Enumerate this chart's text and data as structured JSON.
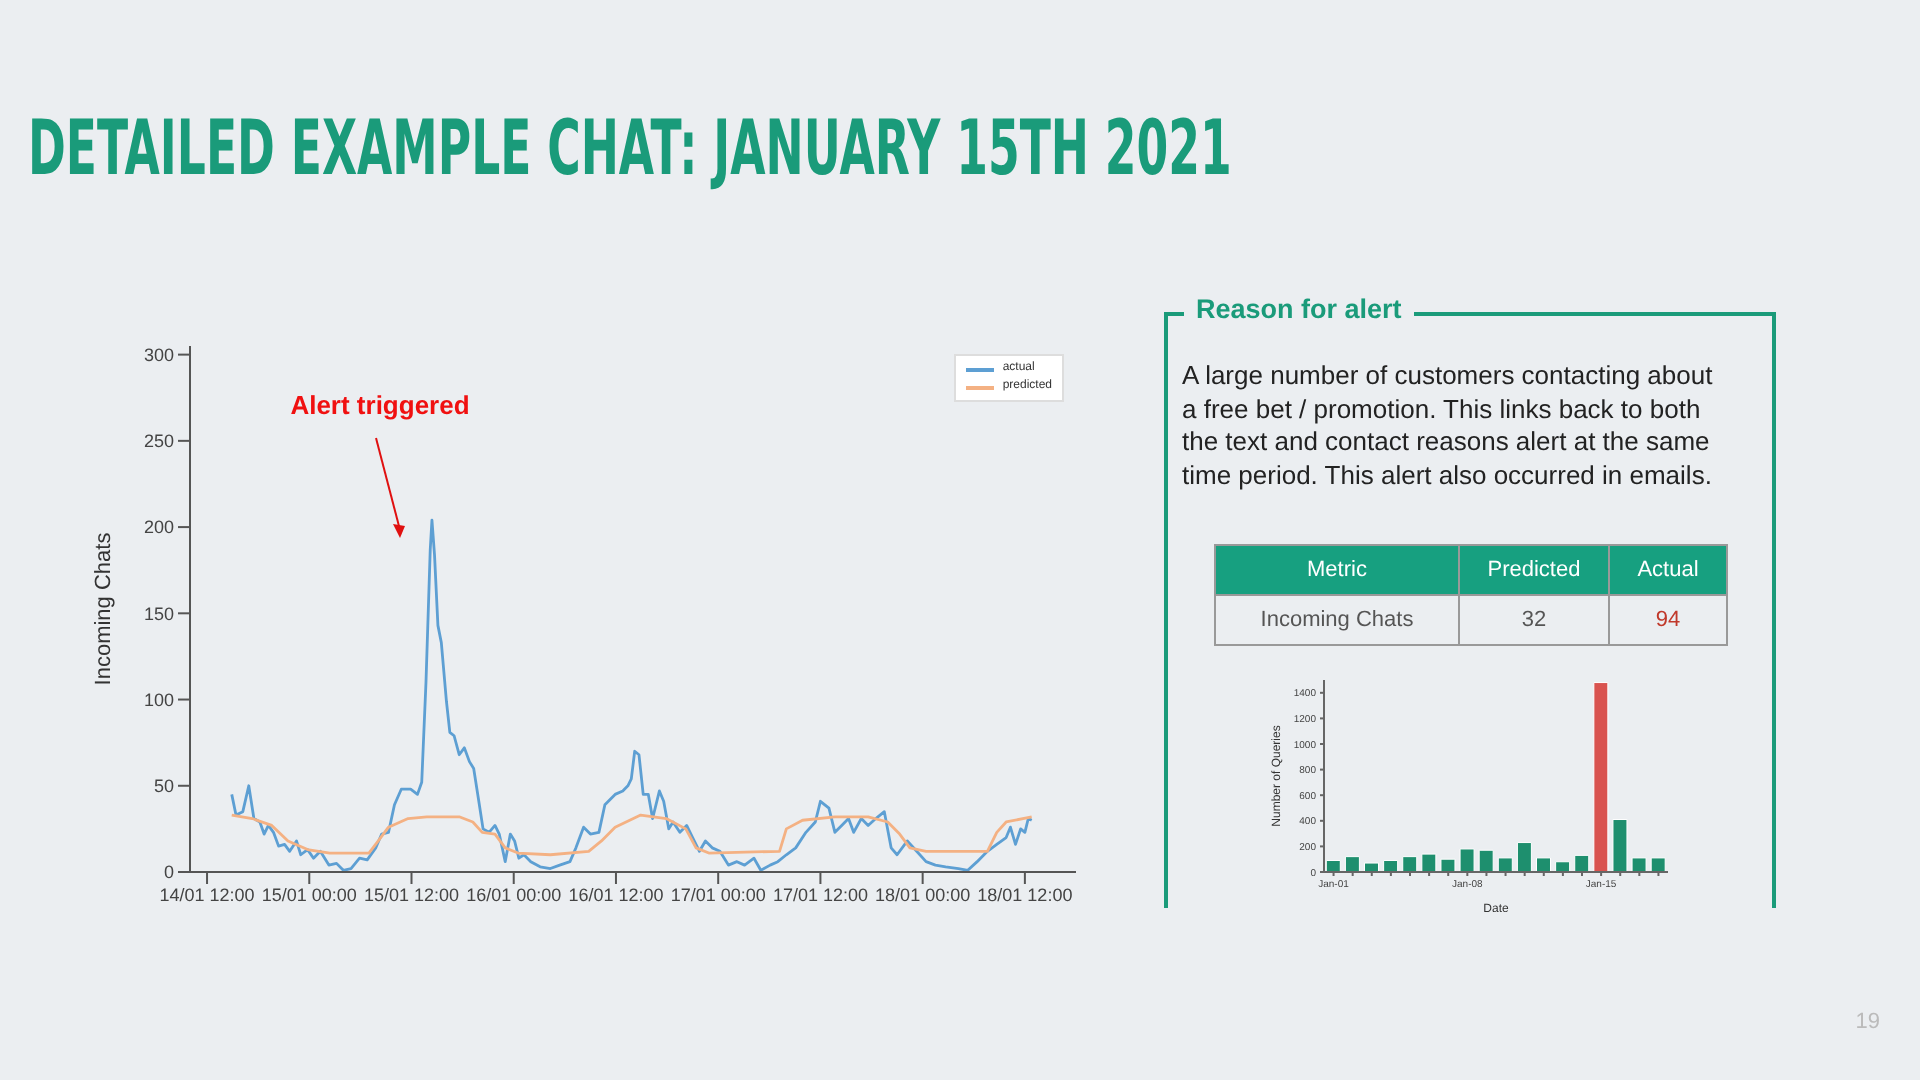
{
  "chart_data": [
    {
      "type": "line",
      "title": "DETAILED EXAMPLE CHAT: JANUARY 15TH 2021",
      "ylabel": "Incoming Chats",
      "xlim": [
        "2021-01-14T10:00",
        "2021-01-18T18:00"
      ],
      "ylim": [
        0,
        305
      ],
      "yticks": [
        0,
        50,
        100,
        150,
        200,
        250,
        300
      ],
      "xticks": [
        {
          "value": "2021-01-14T12:00",
          "label": "14/01 12:00"
        },
        {
          "value": "2021-01-15T00:00",
          "label": "15/01 00:00"
        },
        {
          "value": "2021-01-15T12:00",
          "label": "15/01 12:00"
        },
        {
          "value": "2021-01-16T00:00",
          "label": "16/01 00:00"
        },
        {
          "value": "2021-01-16T12:00",
          "label": "16/01 12:00"
        },
        {
          "value": "2021-01-17T00:00",
          "label": "17/01 00:00"
        },
        {
          "value": "2021-01-17T12:00",
          "label": "17/01 12:00"
        },
        {
          "value": "2021-01-18T00:00",
          "label": "18/01 00:00"
        },
        {
          "value": "2021-01-18T12:00",
          "label": "18/01 12:00"
        }
      ],
      "legend": "top right",
      "marker": "none",
      "series": [
        {
          "name": "actual",
          "color": "#5d9fd3",
          "x": [
            "2021-01-14T14:54",
            "2021-01-14T15:24",
            "2021-01-14T16:12",
            "2021-01-14T16:54",
            "2021-01-14T17:30",
            "2021-01-14T18:12",
            "2021-01-14T18:42",
            "2021-01-14T19:12",
            "2021-01-14T19:48",
            "2021-01-14T20:24",
            "2021-01-14T21:06",
            "2021-01-14T21:42",
            "2021-01-14T22:30",
            "2021-01-14T23:00",
            "2021-01-14T23:48",
            "2021-01-15T00:30",
            "2021-01-15T01:18",
            "2021-01-15T02:18",
            "2021-01-15T03:12",
            "2021-01-15T04:00",
            "2021-01-15T04:54",
            "2021-01-15T05:54",
            "2021-01-15T06:48",
            "2021-01-15T07:48",
            "2021-01-15T08:30",
            "2021-01-15T09:18",
            "2021-01-15T10:00",
            "2021-01-15T10:48",
            "2021-01-15T11:54",
            "2021-01-15T12:42",
            "2021-01-15T13:12",
            "2021-01-15T13:42",
            "2021-01-15T14:12",
            "2021-01-15T14:24",
            "2021-01-15T14:42",
            "2021-01-15T15:06",
            "2021-01-15T15:30",
            "2021-01-15T16:06",
            "2021-01-15T16:30",
            "2021-01-15T17:00",
            "2021-01-15T17:36",
            "2021-01-15T18:12",
            "2021-01-15T18:48",
            "2021-01-15T19:18",
            "2021-01-15T19:54",
            "2021-01-15T20:24",
            "2021-01-15T21:06",
            "2021-01-15T21:48",
            "2021-01-15T22:18",
            "2021-01-15T23:00",
            "2021-01-15T23:36",
            "2021-01-16T00:06",
            "2021-01-16T00:36",
            "2021-01-16T01:12",
            "2021-01-16T02:00",
            "2021-01-16T03:06",
            "2021-01-16T04:18",
            "2021-01-16T05:24",
            "2021-01-16T06:36",
            "2021-01-16T07:18",
            "2021-01-16T08:12",
            "2021-01-16T09:00",
            "2021-01-16T10:00",
            "2021-01-16T10:42",
            "2021-01-16T11:54",
            "2021-01-16T12:48",
            "2021-01-16T13:24",
            "2021-01-16T13:48",
            "2021-01-16T14:12",
            "2021-01-16T14:42",
            "2021-01-16T15:12",
            "2021-01-16T15:48",
            "2021-01-16T16:18",
            "2021-01-16T17:06",
            "2021-01-16T17:36",
            "2021-01-16T18:12",
            "2021-01-16T18:42",
            "2021-01-16T19:30",
            "2021-01-16T20:18",
            "2021-01-16T21:00",
            "2021-01-16T21:48",
            "2021-01-16T22:30",
            "2021-01-16T23:18",
            "2021-01-17T00:12",
            "2021-01-17T01:12",
            "2021-01-17T02:12",
            "2021-01-17T03:06",
            "2021-01-17T04:12",
            "2021-01-17T05:00",
            "2021-01-17T06:06",
            "2021-01-17T07:00",
            "2021-01-17T08:00",
            "2021-01-17T09:06",
            "2021-01-17T10:18",
            "2021-01-17T11:24",
            "2021-01-17T12:00",
            "2021-01-17T13:00",
            "2021-01-17T13:42",
            "2021-01-17T14:30",
            "2021-01-17T15:18",
            "2021-01-17T15:54",
            "2021-01-17T16:48",
            "2021-01-17T17:36",
            "2021-01-17T18:30",
            "2021-01-17T19:30",
            "2021-01-17T20:18",
            "2021-01-17T21:00",
            "2021-01-17T22:12",
            "2021-01-17T23:18",
            "2021-01-18T00:24",
            "2021-01-18T01:30",
            "2021-01-18T02:42",
            "2021-01-18T04:12",
            "2021-01-18T05:18",
            "2021-01-18T06:24",
            "2021-01-18T07:36",
            "2021-01-18T08:42",
            "2021-01-18T09:48",
            "2021-01-18T10:18",
            "2021-01-18T10:54",
            "2021-01-18T11:30",
            "2021-01-18T12:00",
            "2021-01-18T12:24",
            "2021-01-18T12:48"
          ],
          "values": [
            45,
            33,
            35,
            50,
            31,
            29,
            22,
            27,
            23,
            15,
            16,
            12,
            18,
            10,
            13,
            8,
            12,
            4,
            5,
            1,
            2,
            8,
            7,
            14,
            22,
            23,
            39,
            48,
            48,
            45,
            52,
            110,
            187,
            204,
            184,
            143,
            133,
            99,
            81,
            79,
            68,
            72,
            64,
            60,
            41,
            25,
            23,
            27,
            22,
            6,
            22,
            18,
            8,
            10,
            6,
            3,
            2,
            4,
            6,
            14,
            26,
            22,
            23,
            39,
            45,
            47,
            50,
            54,
            70,
            68,
            45,
            45,
            31,
            47,
            41,
            25,
            29,
            23,
            27,
            20,
            12,
            18,
            14,
            12,
            4,
            6,
            4,
            8,
            1,
            4,
            6,
            10,
            14,
            23,
            29,
            41,
            37,
            23,
            27,
            31,
            23,
            31,
            27,
            31,
            35,
            14,
            10,
            18,
            12,
            6,
            4,
            3,
            2,
            1,
            6,
            12,
            16,
            20,
            26,
            16,
            25,
            23,
            31,
            30
          ]
        },
        {
          "name": "predicted",
          "color": "#f4b183",
          "x": [
            "2021-01-14T14:54",
            "2021-01-14T17:18",
            "2021-01-14T19:36",
            "2021-01-14T21:30",
            "2021-01-14T23:48",
            "2021-01-15T02:24",
            "2021-01-15T07:00",
            "2021-01-15T08:06",
            "2021-01-15T09:18",
            "2021-01-15T11:36",
            "2021-01-15T13:48",
            "2021-01-15T17:36",
            "2021-01-15T19:12",
            "2021-01-15T20:18",
            "2021-01-15T21:48",
            "2021-01-15T23:00",
            "2021-01-16T00:30",
            "2021-01-16T04:18",
            "2021-01-16T08:48",
            "2021-01-16T10:18",
            "2021-01-16T11:54",
            "2021-01-16T14:54",
            "2021-01-16T17:54",
            "2021-01-16T20:12",
            "2021-01-16T21:24",
            "2021-01-16T22:54",
            "2021-01-17T07:12",
            "2021-01-17T08:00",
            "2021-01-17T09:54",
            "2021-01-17T13:42",
            "2021-01-17T17:36",
            "2021-01-17T19:54",
            "2021-01-17T21:18",
            "2021-01-17T22:30",
            "2021-01-18T00:24",
            "2021-01-18T07:36",
            "2021-01-18T08:42",
            "2021-01-18T09:48",
            "2021-01-18T12:48"
          ],
          "values": [
            33,
            31,
            27,
            18,
            13,
            11,
            11,
            18,
            26,
            31,
            32,
            32,
            29,
            23,
            22,
            14,
            11,
            10,
            12,
            18,
            26,
            33,
            31,
            25,
            14,
            11,
            12,
            25,
            30,
            32,
            32,
            29,
            22,
            14,
            12,
            12,
            23,
            29,
            32
          ]
        }
      ],
      "annotations": [
        "Alert triggered",
        "19"
      ]
    },
    {
      "type": "other",
      "title": "Reason for alert",
      "annotations": [
        "A large number of customers contacting about a free bet / promotion. This links back to both the text and contact reasons alert at the same time period. This alert also occurred in emails.",
        "Metric",
        "Predicted",
        "Actual",
        "Incoming Chats",
        "32",
        "94"
      ]
    },
    {
      "type": "bar",
      "xlabel": "Date",
      "ylabel": "Number of Queries",
      "categories": [
        "Jan-01",
        null,
        null,
        null,
        null,
        null,
        null,
        "Jan-08",
        null,
        null,
        null,
        null,
        null,
        null,
        "Jan-15",
        null,
        null,
        null
      ],
      "values": [
        90,
        120,
        70,
        90,
        120,
        140,
        100,
        180,
        170,
        110,
        230,
        110,
        80,
        130,
        1480,
        410,
        110,
        110
      ],
      "colors": [
        "#1e8f6e",
        "#1e8f6e",
        "#1e8f6e",
        "#1e8f6e",
        "#1e8f6e",
        "#1e8f6e",
        "#1e8f6e",
        "#1e8f6e",
        "#1e8f6e",
        "#1e8f6e",
        "#1e8f6e",
        "#1e8f6e",
        "#1e8f6e",
        "#1e8f6e",
        "#d9534f",
        "#1e8f6e",
        "#1e8f6e",
        "#1e8f6e"
      ],
      "ylim": [
        0,
        1500
      ],
      "yticks": [
        0,
        200,
        400,
        600,
        800,
        1000,
        1200,
        1400
      ]
    }
  ]
}
